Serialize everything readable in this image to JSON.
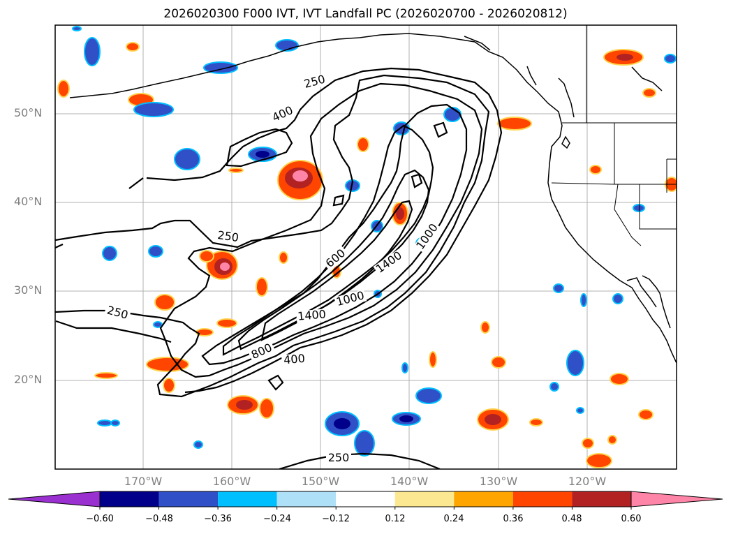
{
  "title": "2026020300 F000 IVT, IVT Landfall PC (2026020700 - 2026020812)",
  "map": {
    "lat_labels": [
      "50°N",
      "40°N",
      "30°N",
      "20°N"
    ],
    "lon_labels": [
      "170°W",
      "160°W",
      "150°W",
      "140°W",
      "130°W",
      "120°W"
    ],
    "contour_labels": [
      "250",
      "400",
      "250",
      "600",
      "1400",
      "1000",
      "800",
      "400",
      "250",
      "1400",
      "1000",
      "250"
    ]
  },
  "colorbar": {
    "ticks": [
      "−0.60",
      "−0.48",
      "−0.36",
      "−0.24",
      "−0.12",
      "0.12",
      "0.24",
      "0.36",
      "0.48",
      "0.60"
    ],
    "colors": [
      "#9b30d0",
      "#00008b",
      "#3050c8",
      "#00bfff",
      "#aee0f8",
      "#ffffff",
      "#fbe890",
      "#ffa500",
      "#ff4500",
      "#b22222",
      "#ff85a8"
    ]
  },
  "colors": {
    "positive_fill": "#ff4500",
    "negative_fill": "#3050c8",
    "grid": "#b0b0b0",
    "coast": "#000000"
  }
}
